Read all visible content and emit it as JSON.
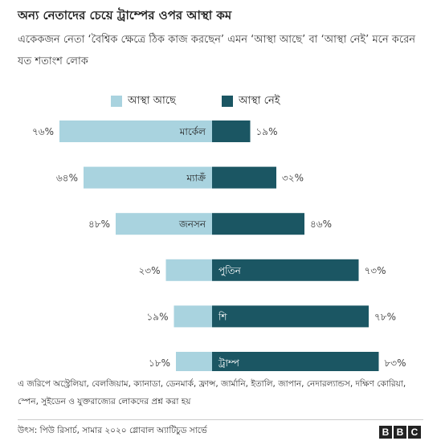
{
  "title": "অন্য নেতাদের চেয়ে ট্রাম্পের ওপর আস্থা কম",
  "subtitle": "একেকজন নেতা ‘বৈশ্বিক ক্ষেত্রে ঠিক কাজ করছেন’ এমন ‘আস্থা আছে’ বা ‘আস্থা নেই’ মনে করেন যত শতাংশ লোক",
  "colors": {
    "confidence": "#a9d3df",
    "no_confidence": "#1b5663"
  },
  "chart_data": {
    "type": "bar",
    "orientation": "horizontal-diverging",
    "categories": [
      "মার্কেল",
      "ম্যাক্রঁ",
      "জনসন",
      "পুতিন",
      "শি",
      "ট্রাম্প"
    ],
    "series": [
      {
        "name": "আস্থা আছে",
        "values": [
          76,
          64,
          48,
          23,
          19,
          18
        ],
        "value_labels": [
          "৭৬%",
          "৬৪%",
          "৪৮%",
          "২৩%",
          "১৯%",
          "১৮%"
        ]
      },
      {
        "name": "আস্থা নেই",
        "values": [
          19,
          32,
          46,
          73,
          78,
          83
        ],
        "value_labels": [
          "১৯%",
          "৩২%",
          "৪৬%",
          "৭৩%",
          "৭৮%",
          "৮৩%"
        ]
      }
    ],
    "legend_position": "top-center",
    "grid": false
  },
  "footnote": "এ জরিপে অস্ট্রেলিয়া, বেলজিয়াম, ক্যানাডা, ডেনমার্ক, ফ্রান্স, জার্মানি, ইতালি, জাপান, নেদারল্যান্ডস, দক্ষিণ কোরিয়া, স্পেন, সুইডেন ও যুক্তরাজ্যের লোকদের প্রশ্ন করা হয়",
  "source": "উৎস: পিউ রিসার্চ, সামার ২০২০ গ্লোবাল অ্যাটিচুড সার্ভে",
  "logo_letters": [
    "B",
    "B",
    "C"
  ]
}
